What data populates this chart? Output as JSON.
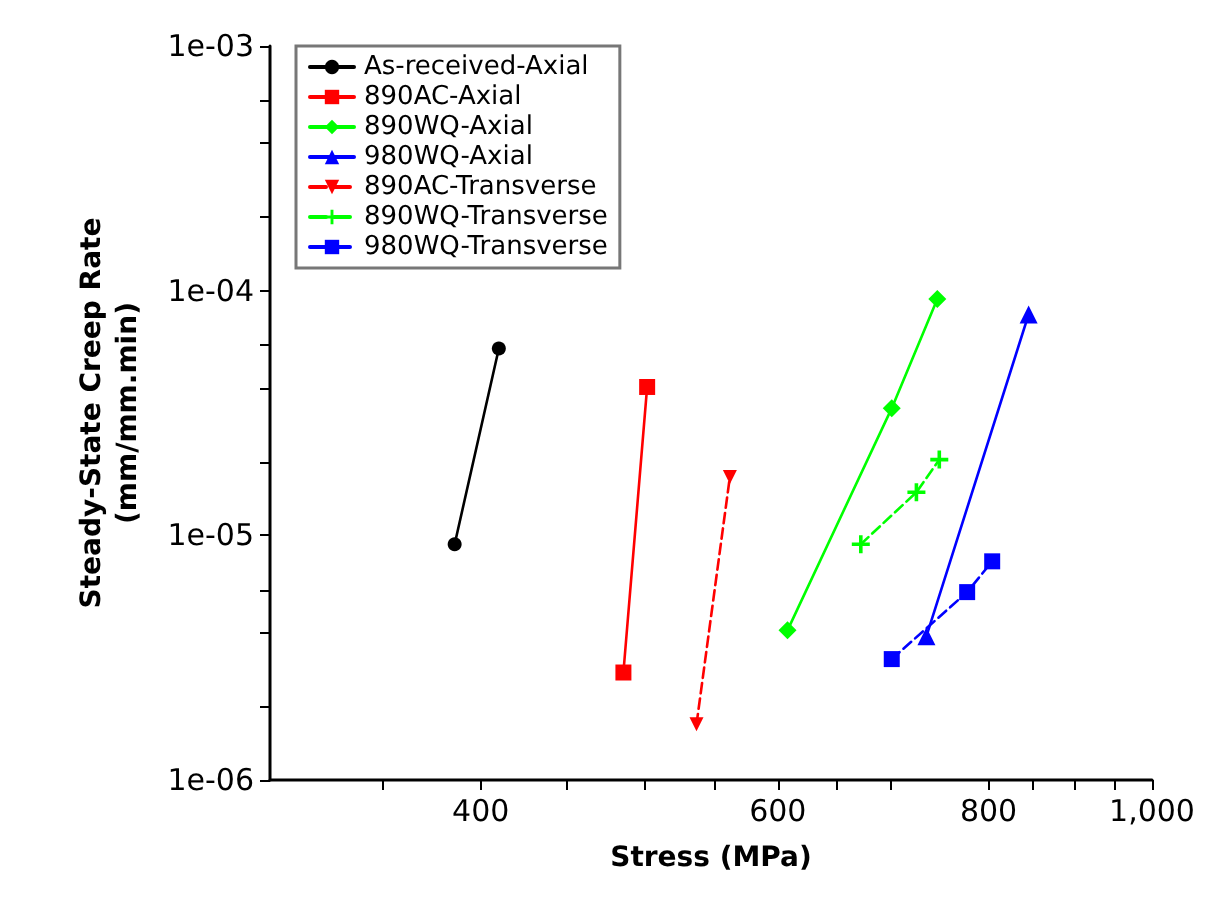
{
  "chart_data": {
    "type": "line",
    "xlabel": "Stress (MPa)",
    "ylabel": "Steady-State Creep Rate\n(mm/mm.min)",
    "log": "xy",
    "grid": false,
    "legend": "top left",
    "xlim": [
      300,
      1000
    ],
    "ylim": [
      1e-06,
      0.001
    ],
    "xticks": [
      {
        "value": 350,
        "label": null
      },
      {
        "value": 400,
        "label": "400"
      },
      {
        "value": 450,
        "label": null
      },
      {
        "value": 500,
        "label": null
      },
      {
        "value": 550,
        "label": null
      },
      {
        "value": 600,
        "label": "600"
      },
      {
        "value": 650,
        "label": null
      },
      {
        "value": 700,
        "label": null
      },
      {
        "value": 800,
        "label": "800"
      },
      {
        "value": 850,
        "label": null
      },
      {
        "value": 900,
        "label": null
      },
      {
        "value": 950,
        "label": null
      },
      {
        "value": 1000,
        "label": "1,000"
      }
    ],
    "yticks": [
      {
        "value": 1e-06,
        "label": "1e-06"
      },
      {
        "value": 2e-06,
        "label": null
      },
      {
        "value": 4e-06,
        "label": null
      },
      {
        "value": 6e-06,
        "label": null
      },
      {
        "value": 1e-05,
        "label": "1e-05"
      },
      {
        "value": 2e-05,
        "label": null
      },
      {
        "value": 4e-05,
        "label": null
      },
      {
        "value": 6e-05,
        "label": null
      },
      {
        "value": 0.0001,
        "label": "1e-04"
      },
      {
        "value": 0.0002,
        "label": null
      },
      {
        "value": 0.0004,
        "label": null
      },
      {
        "value": 0.0006,
        "label": null
      },
      {
        "value": 0.001,
        "label": "1e-03"
      }
    ],
    "series": [
      {
        "name": "As-received-Axial",
        "color": "#000000",
        "marker": "circle",
        "line_style": "solid",
        "x": [
          386,
          410
        ],
        "values": [
          9.2e-06,
          5.8e-05
        ]
      },
      {
        "name": "890AC-Axial",
        "color": "#ff0000",
        "marker": "square",
        "line_style": "solid",
        "x": [
          486,
          502
        ],
        "values": [
          2.75e-06,
          4.04e-05
        ]
      },
      {
        "name": "890WQ-Axial",
        "color": "#00ff00",
        "marker": "diamond",
        "line_style": "solid",
        "x": [
          608,
          701,
          746
        ],
        "values": [
          4.09e-06,
          3.31e-05,
          9.25e-05
        ]
      },
      {
        "name": "980WQ-Axial",
        "color": "#0000ff",
        "marker": "triangle",
        "line_style": "solid",
        "x": [
          735,
          845
        ],
        "values": [
          3.87e-06,
          8e-05
        ]
      },
      {
        "name": "890AC-Transverse",
        "color": "#ff0000",
        "marker": "triangle-down",
        "line_style": "dashed",
        "x": [
          537,
          562
        ],
        "values": [
          1.69e-06,
          1.73e-05
        ]
      },
      {
        "name": "890WQ-Transverse",
        "color": "#00ff00",
        "marker": "cross",
        "line_style": "dashed",
        "x": [
          672,
          725,
          748
        ],
        "values": [
          9.2e-06,
          1.5e-05,
          2.04e-05
        ]
      },
      {
        "name": "980WQ-Transverse",
        "color": "#0000ff",
        "marker": "square",
        "line_style": "dashed",
        "x": [
          701,
          777,
          804
        ],
        "values": [
          3.12e-06,
          5.86e-06,
          7.83e-06
        ]
      }
    ]
  }
}
